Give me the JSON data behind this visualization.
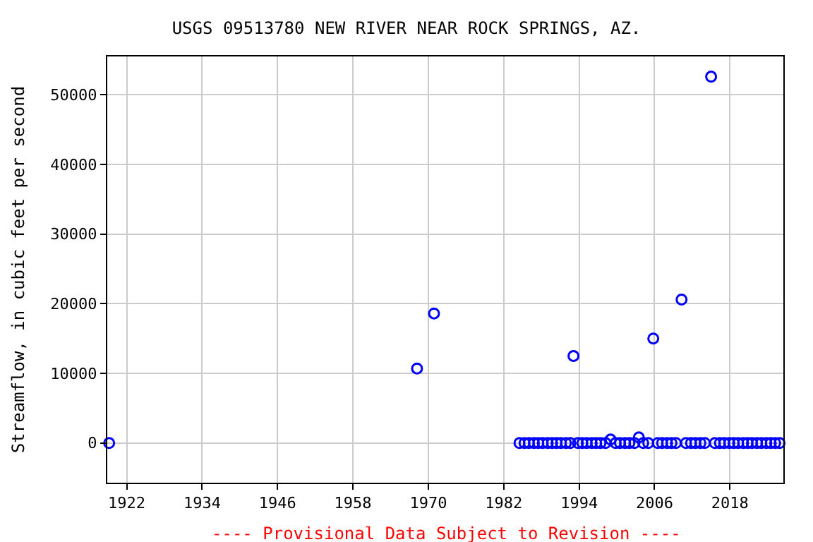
{
  "chart_data": {
    "type": "scatter",
    "title": "USGS 09513780 NEW RIVER NEAR ROCK SPRINGS, AZ.",
    "ylabel": "Streamflow, in cubic feet per second",
    "annotations": [
      "---- Provisional Data Subject to Revision ----"
    ],
    "xlim": [
      1918.9,
      2026.5
    ],
    "ylim": [
      -5700,
      55500
    ],
    "xticks": [
      1922,
      1934,
      1946,
      1958,
      1970,
      1982,
      1994,
      2006,
      2018
    ],
    "yticks": [
      0,
      10000,
      20000,
      30000,
      40000,
      50000
    ],
    "grid": true,
    "marker": "circle",
    "legend": false,
    "series": [
      {
        "color": "#0000ff",
        "x": [
          1919.2,
          1968.2,
          1970.9,
          1984.5,
          1985.3,
          1986.0,
          1986.8,
          1987.5,
          1988.2,
          1989.0,
          1989.7,
          1990.4,
          1991.1,
          1991.9,
          1992.6,
          1993.1,
          1993.8,
          1994.5,
          1995.2,
          1996.0,
          1996.7,
          1997.4,
          1998.2,
          1999.0,
          1999.8,
          2000.5,
          2001.3,
          2002.0,
          2002.8,
          2003.5,
          2004.2,
          2005.0,
          2005.8,
          2006.5,
          2007.2,
          2008.0,
          2008.7,
          2009.4,
          2010.3,
          2011.0,
          2011.8,
          2012.5,
          2013.3,
          2014.0,
          2015.0,
          2015.6,
          2016.4,
          2017.1,
          2017.9,
          2018.6,
          2019.3,
          2020.1,
          2020.8,
          2021.5,
          2022.3,
          2023.0,
          2023.8,
          2024.5,
          2025.2,
          2025.9
        ],
        "values": [
          0,
          10700,
          18600,
          0,
          0,
          0,
          0,
          0,
          0,
          0,
          0,
          0,
          0,
          0,
          0,
          12500,
          0,
          0,
          0,
          0,
          0,
          0,
          0,
          500,
          0,
          0,
          0,
          0,
          0,
          800,
          0,
          0,
          15000,
          0,
          0,
          0,
          0,
          0,
          20600,
          0,
          0,
          0,
          0,
          0,
          52600,
          0,
          0,
          0,
          0,
          0,
          0,
          0,
          0,
          0,
          0,
          0,
          0,
          0,
          0,
          0
        ]
      }
    ]
  }
}
